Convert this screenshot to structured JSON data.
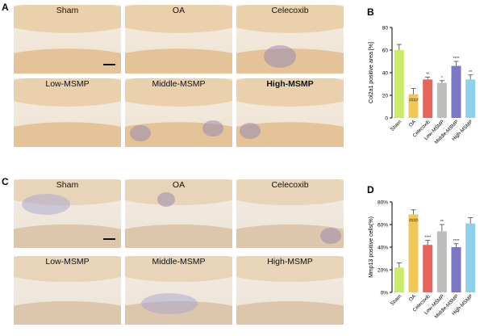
{
  "panels": {
    "A": {
      "label": "A",
      "titles": [
        "Sham",
        "OA",
        "Celecoxib",
        "Low-MSMP",
        "Middle-MSMP",
        "High-MSMP"
      ]
    },
    "B": {
      "label": "B"
    },
    "C": {
      "label": "C",
      "titles": [
        "Sham",
        "OA",
        "Celecoxib",
        "Low-MSMP",
        "Middle-MSMP",
        "High-MSMP"
      ]
    },
    "D": {
      "label": "D"
    }
  },
  "chart_data": [
    {
      "type": "bar",
      "ylabel": "Col2a1 positive area  [%]",
      "categories": [
        "Sham",
        "OA",
        "Celecoxib",
        "Low-MSMP",
        "Middle-MSMP",
        "High-MSMP"
      ],
      "values": [
        60,
        21,
        34,
        31,
        46,
        34
      ],
      "errors": [
        5,
        5,
        2,
        2,
        4,
        4
      ],
      "annotations": [
        "",
        "####",
        "**",
        "*",
        "****",
        "**"
      ],
      "ylim": [
        0,
        80
      ],
      "yticks": [
        0,
        20,
        40,
        60,
        80
      ],
      "colors": [
        "#c9ec6a",
        "#f0c85a",
        "#e8655f",
        "#bdbdbd",
        "#7b77c2",
        "#8fd0ec"
      ]
    },
    {
      "type": "bar",
      "ylabel": "Mmp13 positive cells(%)",
      "categories": [
        "Sham",
        "OA",
        "Celecoxib",
        "Low-MSMP",
        "Middle-MSMP",
        "High-MSMP"
      ],
      "values": [
        22,
        69,
        42,
        54,
        40,
        61
      ],
      "errors": [
        4,
        4,
        4,
        6,
        3,
        5
      ],
      "annotations": [
        "",
        "####",
        "****",
        "**",
        "****",
        ""
      ],
      "ylim": [
        0,
        80
      ],
      "yticks": [
        "0%",
        "20%",
        "40%",
        "60%",
        "80%"
      ],
      "colors": [
        "#c9ec6a",
        "#f0c85a",
        "#e8655f",
        "#bdbdbd",
        "#7b77c2",
        "#8fd0ec"
      ]
    }
  ]
}
